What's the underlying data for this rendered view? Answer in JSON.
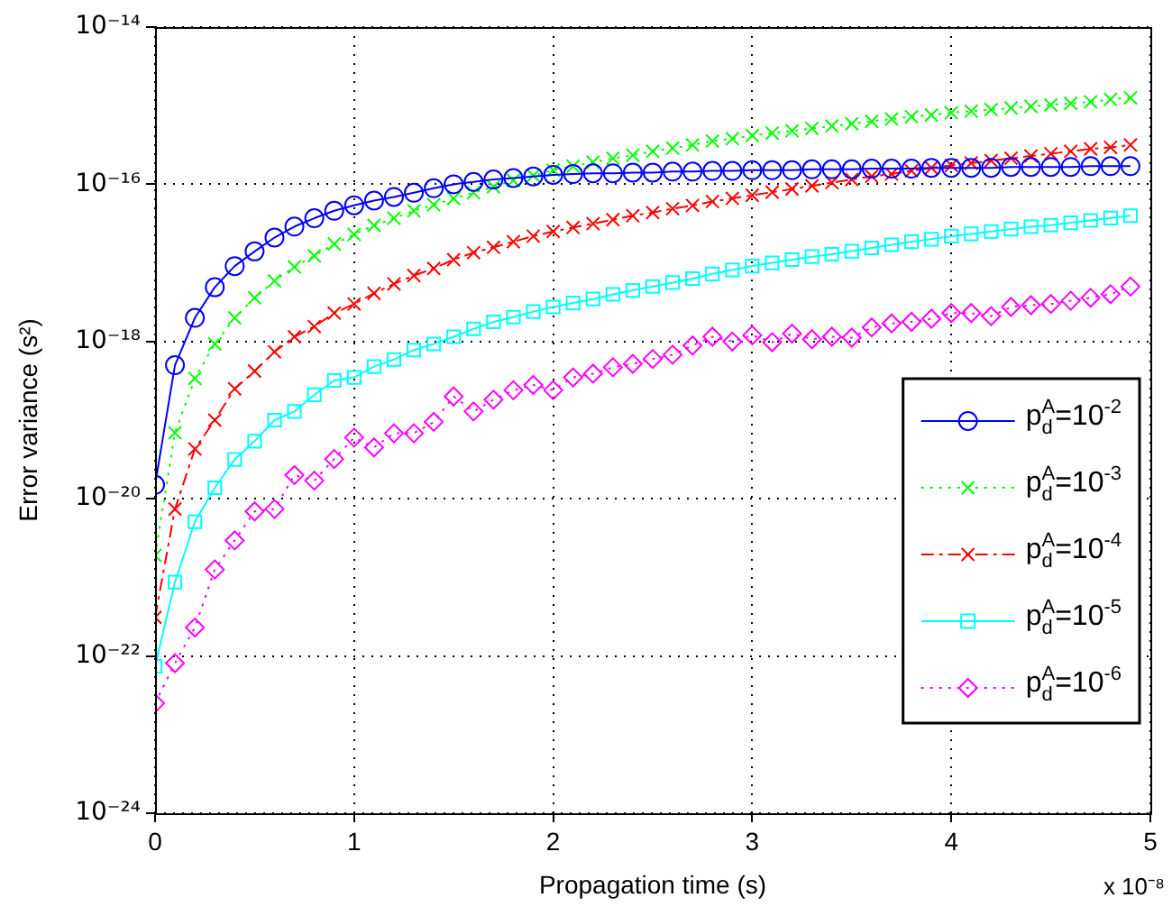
{
  "chart_data": {
    "type": "line",
    "xlabel": "Propagation time (s)",
    "ylabel": "Error variance (s²)",
    "annotations": [
      "x 10⁻⁸"
    ],
    "x": [
      0,
      0.1,
      0.2,
      0.3,
      0.4,
      0.5,
      0.6,
      0.7,
      0.8,
      0.9,
      1,
      1.1,
      1.2,
      1.3,
      1.4,
      1.5,
      1.6,
      1.7,
      1.8,
      1.9,
      2,
      2.1,
      2.2,
      2.3,
      2.4,
      2.5,
      2.6,
      2.7,
      2.8,
      2.9,
      3,
      3.1,
      3.2,
      3.3,
      3.4,
      3.5,
      3.6,
      3.7,
      3.8,
      3.9,
      4,
      4.1,
      4.2,
      4.3,
      4.4,
      4.5,
      4.6,
      4.7,
      4.8,
      4.9
    ],
    "series": [
      {
        "name": "p$_{d}$$^{A}$=10$^{-2}$",
        "color": "#0000ff",
        "marker": "circle",
        "line_style": "solid",
        "values": [
          1.5e-20,
          5e-19,
          2e-18,
          4.9e-18,
          9.1e-18,
          1.4e-17,
          2.1e-17,
          2.9e-17,
          3.7e-17,
          4.6e-17,
          5.4e-17,
          6.2e-17,
          6.9e-17,
          7.8e-17,
          8.9e-17,
          1e-16,
          1.07e-16,
          1.15e-16,
          1.2e-16,
          1.26e-16,
          1.32e-16,
          1.35e-16,
          1.38e-16,
          1.38e-16,
          1.41e-16,
          1.41e-16,
          1.45e-16,
          1.45e-16,
          1.48e-16,
          1.48e-16,
          1.51e-16,
          1.51e-16,
          1.51e-16,
          1.55e-16,
          1.55e-16,
          1.55e-16,
          1.58e-16,
          1.58e-16,
          1.58e-16,
          1.62e-16,
          1.62e-16,
          1.62e-16,
          1.62e-16,
          1.66e-16,
          1.66e-16,
          1.66e-16,
          1.66e-16,
          1.7e-16,
          1.7e-16,
          1.7e-16
        ]
      },
      {
        "name": "p$_{d}$$^{A}$=10$^{-3}$",
        "color": "#00ff00",
        "marker": "cross",
        "line_style": "dotted",
        "values": [
          1.9e-21,
          6.9e-20,
          3.4e-19,
          9.3e-19,
          2e-18,
          3.6e-18,
          5.9e-18,
          8.9e-18,
          1.23e-17,
          1.74e-17,
          2.3e-17,
          3e-17,
          3.7e-17,
          4.6e-17,
          5.5e-17,
          6.6e-17,
          7.8e-17,
          9.3e-17,
          1.12e-16,
          1.29e-16,
          1.51e-16,
          1.7e-16,
          1.91e-16,
          2.14e-16,
          2.34e-16,
          2.63e-16,
          2.88e-16,
          3.16e-16,
          3.55e-16,
          3.8e-16,
          4.17e-16,
          4.47e-16,
          4.79e-16,
          5.13e-16,
          5.5e-16,
          5.89e-16,
          6.31e-16,
          6.76e-16,
          7.24e-16,
          7.59e-16,
          8.13e-16,
          8.51e-16,
          8.91e-16,
          9.33e-16,
          9.77e-16,
          1.02e-15,
          1.07e-15,
          1.12e-15,
          1.2e-15,
          1.26e-15
        ]
      },
      {
        "name": "p$_{d}$$^{A}$=10$^{-4}$",
        "color": "#ff0000",
        "marker": "cross",
        "line_style": "dashed",
        "values": [
          3.1e-22,
          7.4e-21,
          4.3e-20,
          1e-19,
          2.5e-19,
          4.2e-19,
          7.4e-19,
          1.15e-18,
          1.55e-18,
          2.3e-18,
          3e-18,
          4.1e-18,
          5.4e-18,
          6.9e-18,
          8.5e-18,
          1.1e-17,
          1.35e-17,
          1.58e-17,
          1.86e-17,
          2.19e-17,
          2.51e-17,
          2.82e-17,
          3.16e-17,
          3.55e-17,
          3.98e-17,
          4.37e-17,
          4.9e-17,
          5.37e-17,
          6.03e-17,
          6.61e-17,
          7.24e-17,
          7.94e-17,
          8.71e-17,
          9.55e-17,
          1.05e-16,
          1.15e-16,
          1.26e-16,
          1.35e-16,
          1.48e-16,
          1.62e-16,
          1.74e-16,
          1.86e-16,
          2e-16,
          2.14e-16,
          2.29e-16,
          2.45e-16,
          2.63e-16,
          2.82e-16,
          2.95e-16,
          3.16e-16
        ]
      },
      {
        "name": "p$_{d}$$^{A}$=10$^{-5}$",
        "color": "#00ffff",
        "marker": "square",
        "line_style": "solid",
        "values": [
          7.4e-23,
          8.7e-22,
          5.1e-21,
          1.38e-20,
          3.16e-20,
          5.4e-20,
          1e-19,
          1.29e-19,
          2.1e-19,
          3.2e-19,
          3.5e-19,
          4.8e-19,
          5.9e-19,
          7.8e-19,
          9.3e-19,
          1.15e-18,
          1.45e-18,
          1.78e-18,
          2.04e-18,
          2.4e-18,
          2.75e-18,
          3.09e-18,
          3.47e-18,
          3.98e-18,
          4.47e-18,
          5.01e-18,
          5.62e-18,
          6.31e-18,
          7.24e-18,
          8.13e-18,
          9.12e-18,
          1e-17,
          1.1e-17,
          1.2e-17,
          1.29e-17,
          1.41e-17,
          1.55e-17,
          1.7e-17,
          1.86e-17,
          2e-17,
          2.19e-17,
          2.34e-17,
          2.51e-17,
          2.69e-17,
          2.88e-17,
          3.02e-17,
          3.24e-17,
          3.47e-17,
          3.72e-17,
          3.98e-17
        ]
      },
      {
        "name": "p$_{d}$$^{A}$=10$^{-6}$",
        "color": "#ff00ff",
        "marker": "diamond",
        "line_style": "dotted",
        "values": [
          2.5e-23,
          8.1e-23,
          2.3e-22,
          1.26e-21,
          2.95e-21,
          6.9e-21,
          7.4e-21,
          2e-20,
          1.7e-20,
          3.2e-20,
          6e-20,
          4.5e-20,
          6.8e-20,
          6.8e-20,
          9.5e-20,
          2e-19,
          1.29e-19,
          1.82e-19,
          2.4e-19,
          2.8e-19,
          2.4e-19,
          3.5e-19,
          3.9e-19,
          4.7e-19,
          5.2e-19,
          6e-19,
          6.8e-19,
          8.9e-19,
          1.15e-18,
          1e-18,
          1.2e-18,
          9.8e-19,
          1.26e-18,
          1.07e-18,
          1.15e-18,
          1.12e-18,
          1.51e-18,
          1.7e-18,
          1.78e-18,
          1.95e-18,
          2.3e-18,
          2.3e-18,
          2.1e-18,
          2.75e-18,
          2.9e-18,
          3e-18,
          3.3e-18,
          3.6e-18,
          4e-18,
          5e-18
        ]
      }
    ],
    "xlim": [
      0,
      5
    ],
    "xticks": [
      0,
      1,
      2,
      3,
      4,
      5
    ],
    "ylim": [
      1e-24,
      1e-14
    ],
    "yticks": [
      {
        "value": 1e-24,
        "label": "10⁻²⁴"
      },
      {
        "value": 1e-22,
        "label": "10⁻²²"
      },
      {
        "value": 1e-20,
        "label": "10⁻²⁰"
      },
      {
        "value": 1e-18,
        "label": "10⁻¹⁸"
      },
      {
        "value": 1e-16,
        "label": "10⁻¹⁶"
      },
      {
        "value": 1e-14,
        "label": "10⁻¹⁴"
      }
    ],
    "log": "y",
    "grid": true,
    "legend": "bottom right"
  }
}
